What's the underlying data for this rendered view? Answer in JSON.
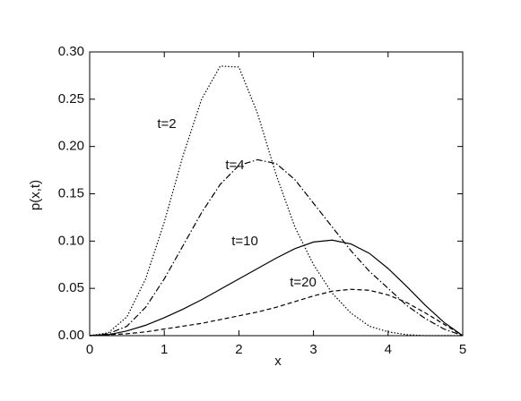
{
  "chart_data": {
    "type": "line",
    "xlabel": "x",
    "ylabel": "p(x,t)",
    "x": [
      0,
      0.25,
      0.5,
      0.75,
      1,
      1.25,
      1.5,
      1.75,
      2,
      2.25,
      2.5,
      2.75,
      3,
      3.25,
      3.5,
      3.75,
      4,
      4.25,
      4.5,
      4.75,
      5
    ],
    "series": [
      {
        "name": "t=2",
        "color": "#000000",
        "dash": "dotted",
        "values": [
          0,
          0.003,
          0.02,
          0.06,
          0.12,
          0.19,
          0.25,
          0.285,
          0.284,
          0.235,
          0.17,
          0.115,
          0.075,
          0.045,
          0.024,
          0.01,
          0.004,
          0.001,
          0,
          0,
          0
        ]
      },
      {
        "name": "t=4",
        "color": "#000000",
        "dash": "dashdot",
        "values": [
          0,
          0.002,
          0.01,
          0.03,
          0.06,
          0.095,
          0.13,
          0.16,
          0.18,
          0.186,
          0.182,
          0.165,
          0.14,
          0.115,
          0.09,
          0.068,
          0.05,
          0.032,
          0.018,
          0.007,
          0
        ]
      },
      {
        "name": "t=10",
        "color": "#000000",
        "dash": "solid",
        "values": [
          0,
          0.001,
          0.005,
          0.011,
          0.019,
          0.028,
          0.038,
          0.049,
          0.06,
          0.071,
          0.082,
          0.092,
          0.099,
          0.101,
          0.097,
          0.087,
          0.071,
          0.052,
          0.032,
          0.014,
          0
        ]
      },
      {
        "name": "t=20",
        "color": "#000000",
        "dash": "dashed",
        "values": [
          0,
          0.001,
          0.002,
          0.004,
          0.007,
          0.01,
          0.013,
          0.017,
          0.021,
          0.025,
          0.03,
          0.036,
          0.042,
          0.047,
          0.049,
          0.048,
          0.043,
          0.035,
          0.024,
          0.012,
          0
        ]
      }
    ],
    "xlim": [
      0,
      5
    ],
    "xticks": [
      0,
      1,
      2,
      3,
      4,
      5
    ],
    "ylim": [
      0,
      0.3
    ],
    "yticks": [
      {
        "value": 0,
        "label": "0.00"
      },
      {
        "value": 0.05,
        "label": "0.05"
      },
      {
        "value": 0.1,
        "label": "0.10"
      },
      {
        "value": 0.15,
        "label": "0.15"
      },
      {
        "value": 0.2,
        "label": "0.20"
      },
      {
        "value": 0.25,
        "label": "0.25"
      },
      {
        "value": 0.3,
        "label": "0.30"
      }
    ],
    "grid": false
  }
}
